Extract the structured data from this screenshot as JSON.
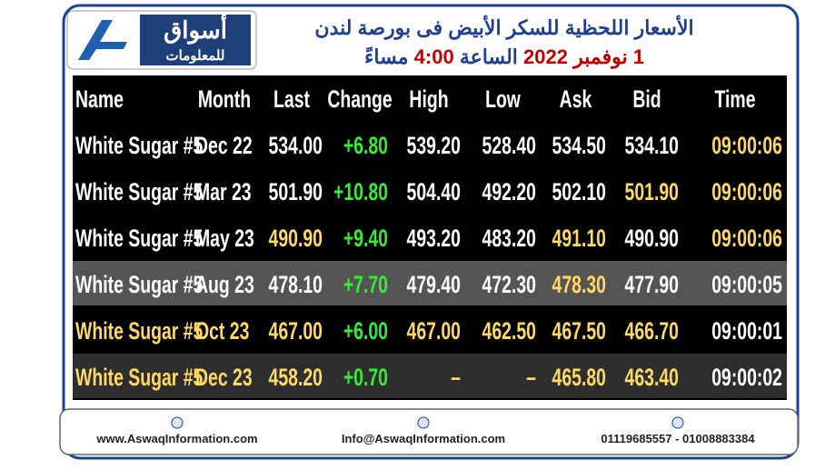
{
  "header": {
    "logo_title": "أسواق",
    "logo_subtitle": "للمعلومات",
    "title": "الأسعار اللحظية للسكر الأبيض فى بورصة لندن",
    "subtitle": [
      {
        "text": "1 نوفمبر 2022",
        "color": "#c00000"
      },
      {
        "text": "الساعة",
        "color": "#1f3f8f"
      },
      {
        "text": "4:00",
        "color": "#c00000"
      },
      {
        "text": "مساءً",
        "color": "#1f3f8f"
      }
    ]
  },
  "table": {
    "columns": [
      "Name",
      "Month",
      "Last",
      "Change",
      "High",
      "Low",
      "Ask",
      "Bid",
      "Time"
    ],
    "rows": [
      {
        "background": "#000000",
        "cells": [
          "White Sugar #5",
          "Dec 22",
          "534.00",
          "+6.80",
          "539.20",
          "528.40",
          "534.50",
          "534.10",
          "09:00:06"
        ],
        "colors": [
          "#ffffff",
          "#ffffff",
          "#ffffff",
          "#33ee33",
          "#ffffff",
          "#ffffff",
          "#ffffff",
          "#ffffff",
          "#ffd966"
        ]
      },
      {
        "background": "#000000",
        "cells": [
          "White Sugar #5",
          "Mar 23",
          "501.90",
          "+10.80",
          "504.40",
          "492.20",
          "502.10",
          "501.90",
          "09:00:06"
        ],
        "colors": [
          "#ffffff",
          "#ffffff",
          "#ffffff",
          "#33ee33",
          "#ffffff",
          "#ffffff",
          "#ffffff",
          "#ffd966",
          "#ffd966"
        ]
      },
      {
        "background": "#000000",
        "cells": [
          "White Sugar #5",
          "May 23",
          "490.90",
          "+9.40",
          "493.20",
          "483.20",
          "491.10",
          "490.90",
          "09:00:06"
        ],
        "colors": [
          "#ffffff",
          "#ffffff",
          "#ffd966",
          "#33ee33",
          "#ffffff",
          "#ffffff",
          "#ffd966",
          "#ffffff",
          "#ffd966"
        ]
      },
      {
        "background": "#555555",
        "cells": [
          "White Sugar #5",
          "Aug 23",
          "478.10",
          "+7.70",
          "479.40",
          "472.30",
          "478.30",
          "477.90",
          "09:00:05"
        ],
        "colors": [
          "#ffffff",
          "#ffffff",
          "#ffffff",
          "#33ee33",
          "#ffffff",
          "#ffffff",
          "#ffd966",
          "#ffffff",
          "#ffffff"
        ]
      },
      {
        "background": "#000000",
        "cells": [
          "White Sugar #5",
          "Oct 23",
          "467.00",
          "+6.00",
          "467.00",
          "462.50",
          "467.50",
          "466.70",
          "09:00:01"
        ],
        "colors": [
          "#ffd966",
          "#ffd966",
          "#ffd966",
          "#33ee33",
          "#ffd966",
          "#ffd966",
          "#ffd966",
          "#ffd966",
          "#ffffff"
        ]
      },
      {
        "background": "#2e2e2e",
        "cells": [
          "White Sugar #5",
          "Dec 23",
          "458.20",
          "+0.70",
          "–",
          "–",
          "465.80",
          "463.40",
          "09:00:02"
        ],
        "colors": [
          "#ffd966",
          "#ffd966",
          "#ffd966",
          "#33ee33",
          "#ffd966",
          "#ffd966",
          "#ffd966",
          "#ffd966",
          "#ffffff"
        ]
      }
    ]
  },
  "footer": {
    "website": "www.AswaqInformation.com",
    "email": "Info@AswaqInformation.com",
    "phones": "01119685557 - 01008883384"
  }
}
